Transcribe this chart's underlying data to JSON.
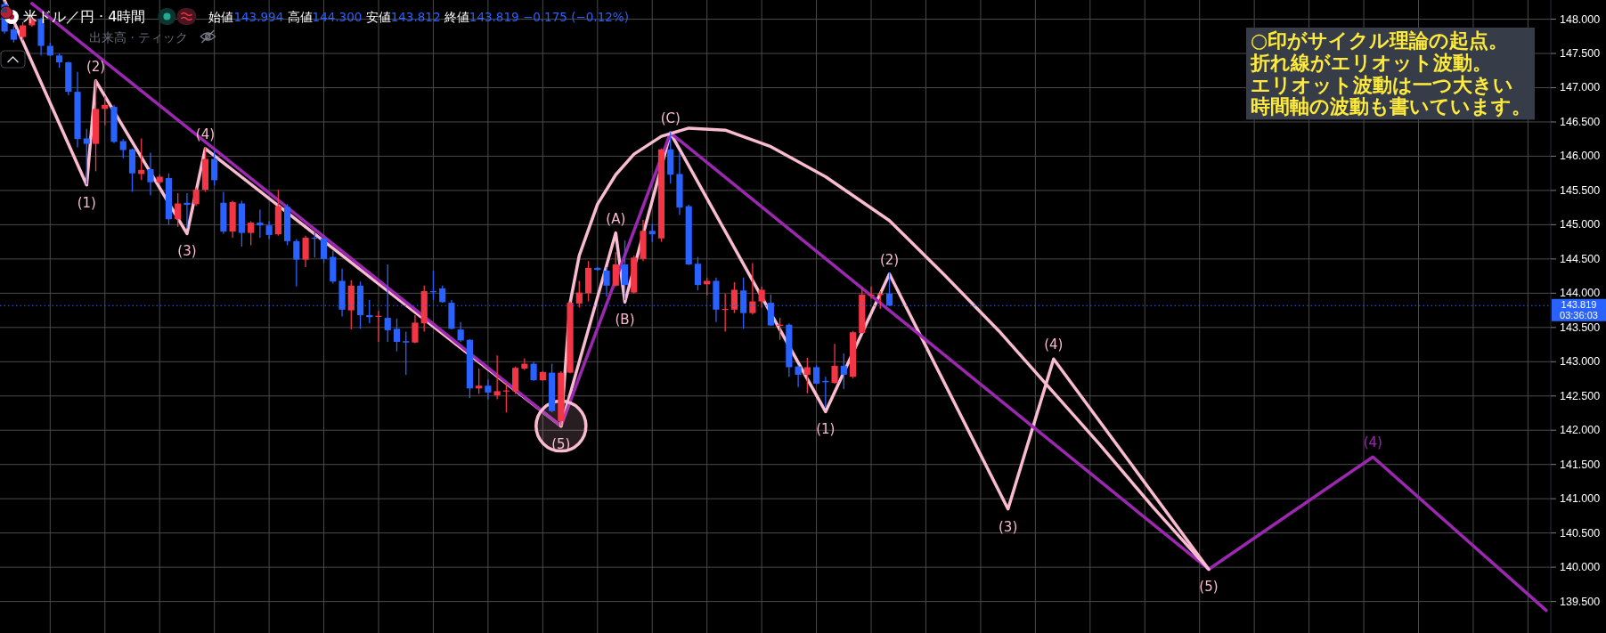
{
  "chart_data": {
    "type": "candlestick",
    "title": "米ドル／円 · 4時間",
    "subtitle": "始値143.994 高値144.300 安値143.812 終値143.819 −0.175 (−0.12%)",
    "categories": [
      null,
      null,
      null,
      null,
      null,
      null,
      null,
      null,
      null,
      null,
      null,
      null,
      null,
      null,
      null,
      null,
      null,
      null,
      null,
      null,
      null,
      null,
      null,
      null,
      null,
      null,
      null,
      null,
      null,
      null,
      null,
      null,
      null,
      null,
      null,
      null,
      null,
      null,
      null,
      null,
      null,
      null,
      null,
      null,
      null,
      null,
      null,
      null,
      null,
      null,
      null,
      null,
      null,
      null,
      null,
      null,
      null,
      null,
      null,
      null,
      null,
      null,
      null,
      null,
      null,
      null,
      null,
      null,
      null,
      null,
      null,
      null,
      null,
      null,
      null,
      null,
      null,
      null,
      null,
      null,
      null,
      null,
      null,
      null,
      null,
      null,
      null,
      null,
      null,
      null,
      null,
      null,
      null,
      null,
      null,
      null,
      null,
      null,
      null,
      null,
      null,
      null,
      null,
      null,
      null,
      null,
      null,
      null,
      null,
      null,
      null,
      null,
      null,
      null,
      null,
      null,
      null,
      null,
      null,
      null,
      null,
      null,
      null,
      null,
      null,
      null,
      null,
      null,
      null,
      null,
      null,
      null,
      null,
      null,
      null,
      null,
      null,
      null,
      null,
      null,
      null,
      null,
      null,
      null,
      null,
      null,
      null,
      null,
      null,
      null,
      null,
      null,
      null,
      null,
      null,
      null,
      null,
      null,
      null,
      null,
      null,
      null,
      null,
      null,
      null,
      null,
      null,
      null,
      null,
      null
    ],
    "ylim": [
      139.04,
      148.28
    ],
    "yticks": [
      {
        "value": 139.5,
        "label": "139.500"
      },
      {
        "value": 140,
        "label": "140.000"
      },
      {
        "value": 140.5,
        "label": "140.500"
      },
      {
        "value": 141,
        "label": "141.000"
      },
      {
        "value": 141.5,
        "label": "141.500"
      },
      {
        "value": 142,
        "label": "142.000"
      },
      {
        "value": 142.5,
        "label": "142.500"
      },
      {
        "value": 143,
        "label": "143.000"
      },
      {
        "value": 143.5,
        "label": "143.500"
      },
      {
        "value": 144,
        "label": "144.000"
      },
      {
        "value": 144.5,
        "label": "144.500"
      },
      {
        "value": 145,
        "label": "145.000"
      },
      {
        "value": 145.5,
        "label": "145.500"
      },
      {
        "value": 146,
        "label": "146.000"
      },
      {
        "value": 146.5,
        "label": "146.500"
      },
      {
        "value": 147,
        "label": "147.000"
      },
      {
        "value": 147.5,
        "label": "147.500"
      },
      {
        "value": 148,
        "label": "148.000"
      }
    ],
    "grid": true,
    "ref_lines": [
      {
        "axis": "y",
        "value": 143.819,
        "label": "143.819\n03:36:03",
        "color": "#2962ff",
        "line_style": "dotted"
      }
    ],
    "annotations": [
      "出来高 · ティック",
      "○印がサイクル理論の起点。",
      "折れ線がエリオット波動。",
      "エリオット波動は一つ大きい",
      "時間軸の波動も書いています。",
      {
        "text": "(1)",
        "y": 145.58
      },
      {
        "text": "(2)",
        "y": 147.1
      },
      {
        "text": "(3)",
        "y": 144.87
      },
      {
        "text": "(4)",
        "y": 146.11
      },
      {
        "text": "(5)",
        "y": 142.06
      },
      {
        "text": "(A)",
        "y": 144.88
      },
      {
        "text": "(B)",
        "y": 143.87
      },
      {
        "text": "(C)",
        "y": 146.34
      },
      {
        "text": "(1)",
        "y": 142.27
      },
      {
        "text": "(2)",
        "y": 144.28
      },
      {
        "text": "(3)",
        "y": 140.85
      },
      {
        "text": "(4)",
        "y": 143.04
      },
      {
        "text": "(5)",
        "y": 139.97
      },
      {
        "text": "(4)",
        "y": 141.61
      }
    ],
    "series": [
      {
        "type": "candlestick",
        "ohlc": [
          [
            148.22,
            148.26,
            147.79,
            147.82
          ],
          [
            147.85,
            147.9,
            147.66,
            147.7
          ],
          [
            147.74,
            147.96,
            147.69,
            147.91
          ],
          [
            147.91,
            148.06,
            147.89,
            148.01
          ],
          [
            148.0,
            148.02,
            147.47,
            147.61
          ],
          [
            147.61,
            147.66,
            147.46,
            147.47
          ],
          [
            147.47,
            147.5,
            147.29,
            147.37
          ],
          [
            147.37,
            147.38,
            146.89,
            146.94
          ],
          [
            146.94,
            147.23,
            146.13,
            146.25
          ],
          [
            146.26,
            146.4,
            145.59,
            146.18
          ],
          [
            146.18,
            147.11,
            145.78,
            146.69
          ],
          [
            146.69,
            146.88,
            146.45,
            146.75
          ],
          [
            146.72,
            146.75,
            146.19,
            146.21
          ],
          [
            146.22,
            146.25,
            145.97,
            146.09
          ],
          [
            146.1,
            146.11,
            145.48,
            145.75
          ],
          [
            145.74,
            146.26,
            145.65,
            145.8
          ],
          [
            145.81,
            146.05,
            145.43,
            145.62
          ],
          [
            145.62,
            145.73,
            145.59,
            145.7
          ],
          [
            145.68,
            145.75,
            145.0,
            145.08
          ],
          [
            145.08,
            145.46,
            144.97,
            145.31
          ],
          [
            145.32,
            145.46,
            144.95,
            145.29
          ],
          [
            145.3,
            145.54,
            145.27,
            145.51
          ],
          [
            145.51,
            146.13,
            145.48,
            145.96
          ],
          [
            145.96,
            146.08,
            145.57,
            145.65
          ],
          [
            145.32,
            145.48,
            144.87,
            144.9
          ],
          [
            144.9,
            145.35,
            144.81,
            145.33
          ],
          [
            145.31,
            145.35,
            144.68,
            144.88
          ],
          [
            144.88,
            145.05,
            144.7,
            145.03
          ],
          [
            145.03,
            145.22,
            144.81,
            144.99
          ],
          [
            144.99,
            145.05,
            144.79,
            144.85
          ],
          [
            144.86,
            145.51,
            144.84,
            145.27
          ],
          [
            145.26,
            145.3,
            144.7,
            144.76
          ],
          [
            144.76,
            144.79,
            144.1,
            144.49
          ],
          [
            144.49,
            144.84,
            144.38,
            144.81
          ],
          [
            144.81,
            144.89,
            144.52,
            144.8
          ],
          [
            144.8,
            144.84,
            144.44,
            144.5
          ],
          [
            144.53,
            144.62,
            144.14,
            144.17
          ],
          [
            144.18,
            144.36,
            143.66,
            143.76
          ],
          [
            143.75,
            144.19,
            143.47,
            144.11
          ],
          [
            144.11,
            144.17,
            143.48,
            143.68
          ],
          [
            143.68,
            143.9,
            143.56,
            143.65
          ],
          [
            143.66,
            143.74,
            143.29,
            143.67
          ],
          [
            143.64,
            144.42,
            143.29,
            143.46
          ],
          [
            143.48,
            143.63,
            143.15,
            143.29
          ],
          [
            143.3,
            143.44,
            142.81,
            143.28
          ],
          [
            143.28,
            143.68,
            143.27,
            143.57
          ],
          [
            143.56,
            144.11,
            143.44,
            144.03
          ],
          [
            144.03,
            144.33,
            143.9,
            144.02
          ],
          [
            144.07,
            144.11,
            143.86,
            143.87
          ],
          [
            143.86,
            143.9,
            143.47,
            143.48
          ],
          [
            143.47,
            143.58,
            143.29,
            143.31
          ],
          [
            143.32,
            143.33,
            142.47,
            142.61
          ],
          [
            142.61,
            142.9,
            142.53,
            142.65
          ],
          [
            142.65,
            142.74,
            142.45,
            142.55
          ],
          [
            142.51,
            143.09,
            142.45,
            142.57
          ],
          [
            142.57,
            142.69,
            142.26,
            142.58
          ],
          [
            142.57,
            142.93,
            142.53,
            142.91
          ],
          [
            142.9,
            143.05,
            142.88,
            142.97
          ],
          [
            142.97,
            143.0,
            142.72,
            142.73
          ],
          [
            142.73,
            142.86,
            142.72,
            142.85
          ],
          [
            142.84,
            142.97,
            142.26,
            142.28
          ],
          [
            142.13,
            142.86,
            142.06,
            142.84
          ],
          [
            142.84,
            143.88,
            142.83,
            143.86
          ],
          [
            143.85,
            144.18,
            143.79,
            144.01
          ],
          [
            144.0,
            144.47,
            143.88,
            144.37
          ],
          [
            144.37,
            144.38,
            144.33,
            144.34
          ],
          [
            144.33,
            144.38,
            143.95,
            144.11
          ],
          [
            144.11,
            144.6,
            144.1,
            144.42
          ],
          [
            144.42,
            144.77,
            143.9,
            144.12
          ],
          [
            144.01,
            144.55,
            143.99,
            144.52
          ],
          [
            144.5,
            145.07,
            144.47,
            144.91
          ],
          [
            144.91,
            145.01,
            144.75,
            144.86
          ],
          [
            144.8,
            146.11,
            144.75,
            146.1
          ],
          [
            146.1,
            146.35,
            145.6,
            145.73
          ],
          [
            145.74,
            146.05,
            145.14,
            145.25
          ],
          [
            145.27,
            145.29,
            144.41,
            144.42
          ],
          [
            144.43,
            144.53,
            144.04,
            144.12
          ],
          [
            144.13,
            144.23,
            143.97,
            144.18
          ],
          [
            144.18,
            144.23,
            143.58,
            143.76
          ],
          [
            143.76,
            143.99,
            143.44,
            143.77
          ],
          [
            143.76,
            144.16,
            143.71,
            144.05
          ],
          [
            144.04,
            144.23,
            143.48,
            143.71
          ],
          [
            143.71,
            144.44,
            143.69,
            143.88
          ],
          [
            143.88,
            144.1,
            143.79,
            144.05
          ],
          [
            143.86,
            143.98,
            143.52,
            143.53
          ],
          [
            143.53,
            143.64,
            143.32,
            143.54
          ],
          [
            143.54,
            143.56,
            142.78,
            142.92
          ],
          [
            142.93,
            142.95,
            142.63,
            142.81
          ],
          [
            142.81,
            143.06,
            142.54,
            142.92
          ],
          [
            142.92,
            142.95,
            142.67,
            142.68
          ],
          [
            142.72,
            142.78,
            142.34,
            142.7
          ],
          [
            142.69,
            143.26,
            142.68,
            142.94
          ],
          [
            142.94,
            143.12,
            142.6,
            142.81
          ],
          [
            142.78,
            143.45,
            142.76,
            143.43
          ],
          [
            143.42,
            144.08,
            143.41,
            143.98
          ],
          [
            143.97,
            144.1,
            143.92,
            143.98
          ],
          [
            143.98,
            144.03,
            143.77,
            143.99
          ],
          [
            143.994,
            144.3,
            143.812,
            143.819
          ],
          null,
          null,
          null,
          null,
          null,
          null,
          null,
          null,
          null,
          null,
          null,
          null,
          null,
          null,
          null,
          null,
          null,
          null,
          null,
          null,
          null,
          null,
          null,
          null,
          null,
          null,
          null,
          null,
          null,
          null,
          null,
          null,
          null,
          null,
          null,
          null,
          null,
          null,
          null,
          null,
          null,
          null,
          null,
          null,
          null,
          null,
          null,
          null,
          null,
          null,
          null,
          null,
          null,
          null,
          null,
          null,
          null,
          null,
          null,
          null,
          null,
          null,
          null,
          null,
          null,
          null,
          null,
          null,
          null,
          null,
          null,
          null
        ],
        "colors": [
          "#2962ff",
          "#2962ff",
          "#f23645",
          "#f23645",
          "#2962ff",
          "#2962ff",
          "#2962ff",
          "#2962ff",
          "#2962ff",
          "#2962ff",
          "#f23645",
          "#f23645",
          "#2962ff",
          "#2962ff",
          "#2962ff",
          "#f23645",
          "#2962ff",
          "#f23645",
          "#2962ff",
          "#f23645",
          "#2962ff",
          "#f23645",
          "#f23645",
          "#2962ff",
          "#2962ff",
          "#f23645",
          "#2962ff",
          "#f23645",
          "#2962ff",
          "#2962ff",
          "#f23645",
          "#2962ff",
          "#2962ff",
          "#f23645",
          "#2962ff",
          "#2962ff",
          "#2962ff",
          "#2962ff",
          "#f23645",
          "#2962ff",
          "#2962ff",
          "#f23645",
          "#2962ff",
          "#2962ff",
          "#2962ff",
          "#f23645",
          "#f23645",
          "#2962ff",
          "#2962ff",
          "#2962ff",
          "#2962ff",
          "#2962ff",
          "#f23645",
          "#2962ff",
          "#f23645",
          "#f23645",
          "#f23645",
          "#f23645",
          "#2962ff",
          "#f23645",
          "#2962ff",
          "#f23645",
          "#f23645",
          "#f23645",
          "#f23645",
          "#2962ff",
          "#2962ff",
          "#f23645",
          "#2962ff",
          "#f23645",
          "#f23645",
          "#2962ff",
          "#f23645",
          "#2962ff",
          "#2962ff",
          "#2962ff",
          "#2962ff",
          "#f23645",
          "#2962ff",
          "#f23645",
          "#f23645",
          "#2962ff",
          "#f23645",
          "#f23645",
          "#2962ff",
          "#f23645",
          "#2962ff",
          "#2962ff",
          "#f23645",
          "#2962ff",
          "#2962ff",
          "#f23645",
          "#2962ff",
          "#f23645",
          "#f23645",
          "#f23645",
          "#f23645",
          "#2962ff",
          null,
          null,
          null,
          null,
          null,
          null,
          null,
          null,
          null,
          null,
          null,
          null,
          null,
          null,
          null,
          null,
          null,
          null,
          null,
          null,
          null,
          null,
          null,
          null,
          null,
          null,
          null,
          null,
          null,
          null,
          null,
          null,
          null,
          null,
          null,
          null,
          null,
          null,
          null,
          null,
          null,
          null,
          null,
          null,
          null,
          null,
          null,
          null,
          null,
          null,
          null,
          null,
          null,
          null,
          null,
          null,
          null,
          null,
          null,
          null,
          null,
          null,
          null,
          null,
          null,
          null,
          null,
          null,
          null,
          null,
          null,
          null
        ]
      },
      {
        "type": "line",
        "color": "#f8bbd0",
        "values": [
          148.27,
          null,
          null,
          null,
          null,
          null,
          null,
          null,
          null,
          145.58,
          147.1,
          null,
          null,
          null,
          null,
          null,
          null,
          null,
          null,
          null,
          144.87,
          null,
          146.11,
          null,
          null,
          null,
          null,
          null,
          null,
          null,
          null,
          null,
          null,
          null,
          null,
          null,
          null,
          null,
          null,
          null,
          null,
          null,
          null,
          null,
          null,
          null,
          null,
          null,
          null,
          null,
          null,
          null,
          null,
          null,
          null,
          null,
          null,
          null,
          null,
          null,
          null,
          142.06,
          null,
          null,
          null,
          null,
          null,
          144.88,
          143.87,
          null,
          null,
          null,
          null,
          146.34,
          null,
          null,
          null,
          null,
          null,
          null,
          null,
          null,
          null,
          null,
          null,
          null,
          null,
          null,
          null,
          null,
          142.27,
          null,
          null,
          null,
          null,
          null,
          null,
          144.28,
          null,
          null,
          null,
          null,
          null,
          null,
          null,
          null,
          null,
          null,
          null,
          null,
          140.85,
          null,
          null,
          null,
          null,
          143.04,
          null,
          null,
          null,
          null,
          null,
          null,
          null,
          null,
          null,
          null,
          null,
          null,
          null,
          null,
          null,
          null,
          139.97,
          null,
          null,
          null,
          null,
          null,
          null,
          null,
          null,
          null,
          null,
          null,
          null,
          null,
          null,
          null,
          null,
          null,
          null,
          null,
          null,
          null,
          null,
          null,
          null,
          null,
          null,
          null,
          null,
          null,
          null,
          null,
          null,
          null,
          null,
          null,
          null,
          null
        ]
      },
      {
        "type": "line",
        "color": "#9c27b0",
        "values": [
          null,
          null,
          null,
          148.23,
          null,
          null,
          null,
          null,
          null,
          null,
          null,
          null,
          null,
          null,
          null,
          null,
          null,
          null,
          null,
          null,
          null,
          null,
          null,
          null,
          null,
          null,
          null,
          null,
          null,
          null,
          null,
          null,
          null,
          null,
          null,
          null,
          null,
          null,
          null,
          null,
          null,
          null,
          null,
          null,
          null,
          null,
          null,
          null,
          null,
          null,
          null,
          null,
          null,
          null,
          null,
          null,
          null,
          null,
          null,
          null,
          null,
          142.06,
          null,
          null,
          null,
          null,
          null,
          null,
          null,
          null,
          null,
          null,
          null,
          146.34,
          null,
          null,
          null,
          null,
          null,
          null,
          null,
          null,
          null,
          null,
          null,
          null,
          null,
          null,
          null,
          null,
          null,
          null,
          null,
          null,
          null,
          null,
          null,
          null,
          null,
          null,
          null,
          null,
          null,
          null,
          null,
          null,
          null,
          null,
          null,
          null,
          null,
          null,
          null,
          null,
          null,
          null,
          null,
          null,
          null,
          null,
          null,
          null,
          null,
          null,
          null,
          null,
          null,
          null,
          null,
          null,
          null,
          null,
          139.97,
          null,
          null,
          null,
          null,
          null,
          null,
          null,
          null,
          null,
          null,
          null,
          null,
          null,
          null,
          null,
          null,
          null,
          141.61,
          null,
          null,
          null,
          null,
          null,
          null,
          null,
          null,
          null,
          null,
          null,
          null,
          null,
          null,
          null,
          null,
          null,
          null,
          139.37
        ]
      },
      {
        "type": "line",
        "color": "#f8bbd0",
        "values": [
          null,
          null,
          null,
          null,
          null,
          null,
          null,
          null,
          null,
          null,
          null,
          null,
          null,
          null,
          null,
          null,
          null,
          null,
          null,
          null,
          null,
          null,
          null,
          null,
          null,
          null,
          null,
          null,
          null,
          null,
          null,
          null,
          null,
          null,
          null,
          null,
          null,
          null,
          null,
          null,
          null,
          null,
          null,
          null,
          null,
          null,
          null,
          null,
          null,
          null,
          null,
          null,
          null,
          null,
          null,
          null,
          null,
          null,
          null,
          null,
          null,
          142.06,
          143.86,
          144.55,
          null,
          145.3,
          null,
          145.73,
          null,
          146.03,
          null,
          null,
          146.29,
          null,
          null,
          146.41,
          null,
          null,
          null,
          146.38,
          null,
          null,
          null,
          null,
          146.14,
          null,
          null,
          null,
          null,
          null,
          145.7,
          null,
          null,
          null,
          null,
          null,
          null,
          145.06,
          null,
          null,
          null,
          null,
          null,
          144.27,
          null,
          null,
          null,
          null,
          null,
          143.45,
          null,
          null,
          null,
          null,
          142.7,
          null,
          null,
          null,
          null,
          null,
          141.8,
          null,
          null,
          null,
          null,
          null,
          140.86,
          null,
          null,
          null,
          null,
          null,
          139.97,
          null,
          null,
          null,
          null,
          null,
          null,
          null,
          null,
          null,
          null,
          null,
          null,
          null,
          null,
          null,
          null,
          null,
          null,
          null,
          null,
          null,
          null,
          null,
          null,
          null,
          null,
          null,
          null,
          null,
          null,
          null,
          null,
          null,
          null,
          null,
          null,
          null
        ]
      },
      {
        "type": "scatter",
        "color": "#f8bbd0",
        "marker": "circle",
        "values": [
          null,
          null,
          null,
          null,
          null,
          null,
          null,
          null,
          null,
          null,
          null,
          null,
          null,
          null,
          null,
          null,
          null,
          null,
          null,
          null,
          null,
          null,
          null,
          null,
          null,
          null,
          null,
          null,
          null,
          null,
          null,
          null,
          null,
          null,
          null,
          null,
          null,
          null,
          null,
          null,
          null,
          null,
          null,
          null,
          null,
          null,
          null,
          null,
          null,
          null,
          null,
          null,
          null,
          null,
          null,
          null,
          null,
          null,
          null,
          null,
          null,
          142.06,
          null,
          null,
          null,
          null,
          null,
          null,
          null,
          null,
          null,
          null,
          null,
          null,
          null,
          null,
          null,
          null,
          null,
          null,
          null,
          null,
          null,
          null,
          null,
          null,
          null,
          null,
          null,
          null,
          null,
          null,
          null,
          null,
          null,
          null,
          null,
          null,
          null,
          null,
          null,
          null,
          null,
          null,
          null,
          null,
          null,
          null,
          null,
          null,
          null,
          null,
          null,
          null,
          null,
          null,
          null,
          null,
          null,
          null,
          null,
          null,
          null,
          null,
          null,
          null,
          null,
          null,
          null,
          null,
          null,
          null,
          null,
          null,
          null,
          null,
          null,
          null,
          null,
          null,
          null,
          null,
          null,
          null,
          null,
          null,
          null,
          null,
          null,
          null,
          null,
          null,
          null,
          null,
          null,
          null,
          null,
          null,
          null,
          null,
          null,
          null,
          null,
          null,
          null,
          null,
          null,
          null,
          null,
          null
        ]
      }
    ]
  }
}
